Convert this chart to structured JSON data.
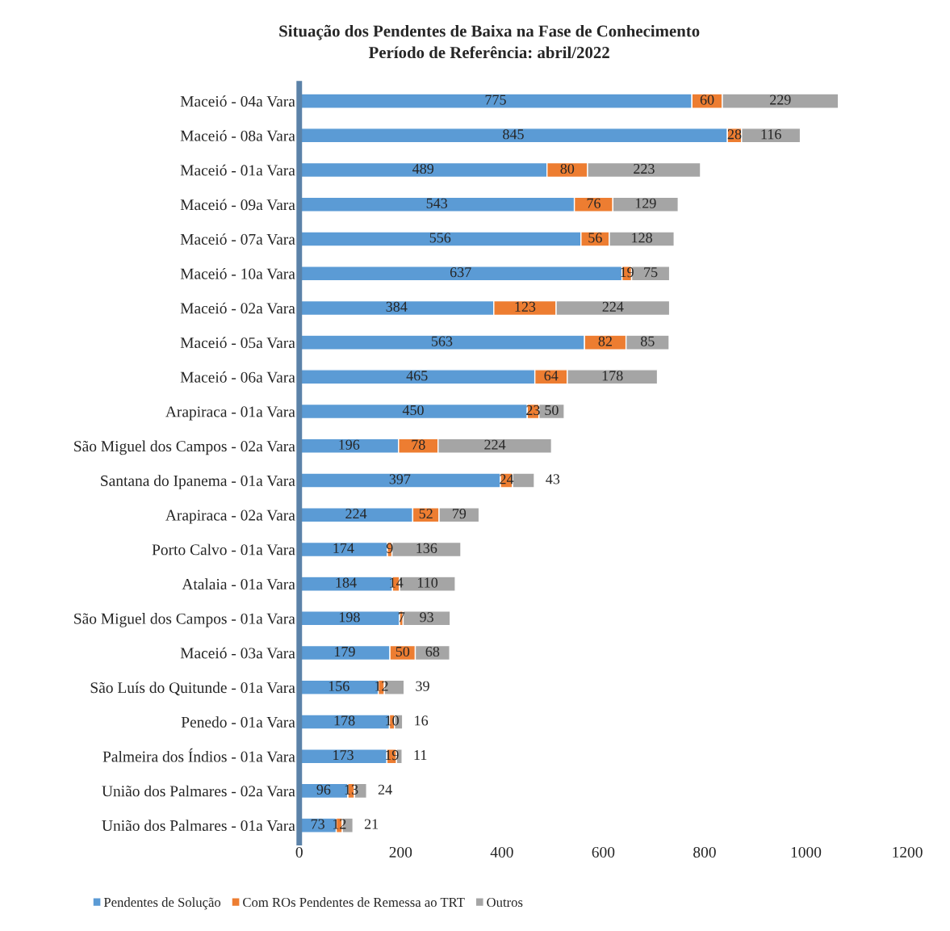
{
  "chart_data": {
    "type": "bar",
    "orientation": "horizontal",
    "stacked": true,
    "title": "Situação dos Pendentes de Baixa na Fase de Conhecimento",
    "subtitle": "Período de Referência: abril/2022",
    "categories": [
      "Maceió - 04a Vara",
      "Maceió - 08a Vara",
      "Maceió - 01a Vara",
      "Maceió - 09a Vara",
      "Maceió - 07a Vara",
      "Maceió - 10a Vara",
      "Maceió - 02a Vara",
      "Maceió - 05a Vara",
      "Maceió - 06a Vara",
      "Arapiraca - 01a Vara",
      "São Miguel dos Campos - 02a Vara",
      "Santana do Ipanema - 01a Vara",
      "Arapiraca - 02a Vara",
      "Porto Calvo - 01a Vara",
      "Atalaia - 01a Vara",
      "São Miguel dos Campos - 01a Vara",
      "Maceió - 03a Vara",
      "São Luís do Quitunde - 01a Vara",
      "Penedo - 01a Vara",
      "Palmeira dos Índios - 01a Vara",
      "União dos Palmares - 02a Vara",
      "União dos Palmares - 01a Vara"
    ],
    "series": [
      {
        "name": "Pendentes de Solução",
        "color": "#5b9bd5",
        "values": [
          775,
          845,
          489,
          543,
          556,
          637,
          384,
          563,
          465,
          450,
          196,
          397,
          224,
          174,
          184,
          198,
          179,
          156,
          178,
          173,
          96,
          73
        ]
      },
      {
        "name": "Com ROs Pendentes de Remessa ao TRT",
        "color": "#ed7d31",
        "values": [
          60,
          28,
          80,
          76,
          56,
          19,
          123,
          82,
          64,
          23,
          78,
          24,
          52,
          9,
          14,
          7,
          50,
          12,
          10,
          19,
          13,
          12
        ]
      },
      {
        "name": "Outros",
        "color": "#a5a5a5",
        "values": [
          229,
          116,
          223,
          129,
          128,
          75,
          224,
          85,
          178,
          50,
          224,
          43,
          79,
          136,
          110,
          93,
          68,
          39,
          16,
          11,
          24,
          21
        ]
      }
    ],
    "xlim": [
      0,
      1200
    ],
    "xticks": [
      0,
      200,
      400,
      600,
      800,
      1000,
      1200
    ],
    "data_labels": true,
    "legend": "bottom left",
    "grid": false
  }
}
